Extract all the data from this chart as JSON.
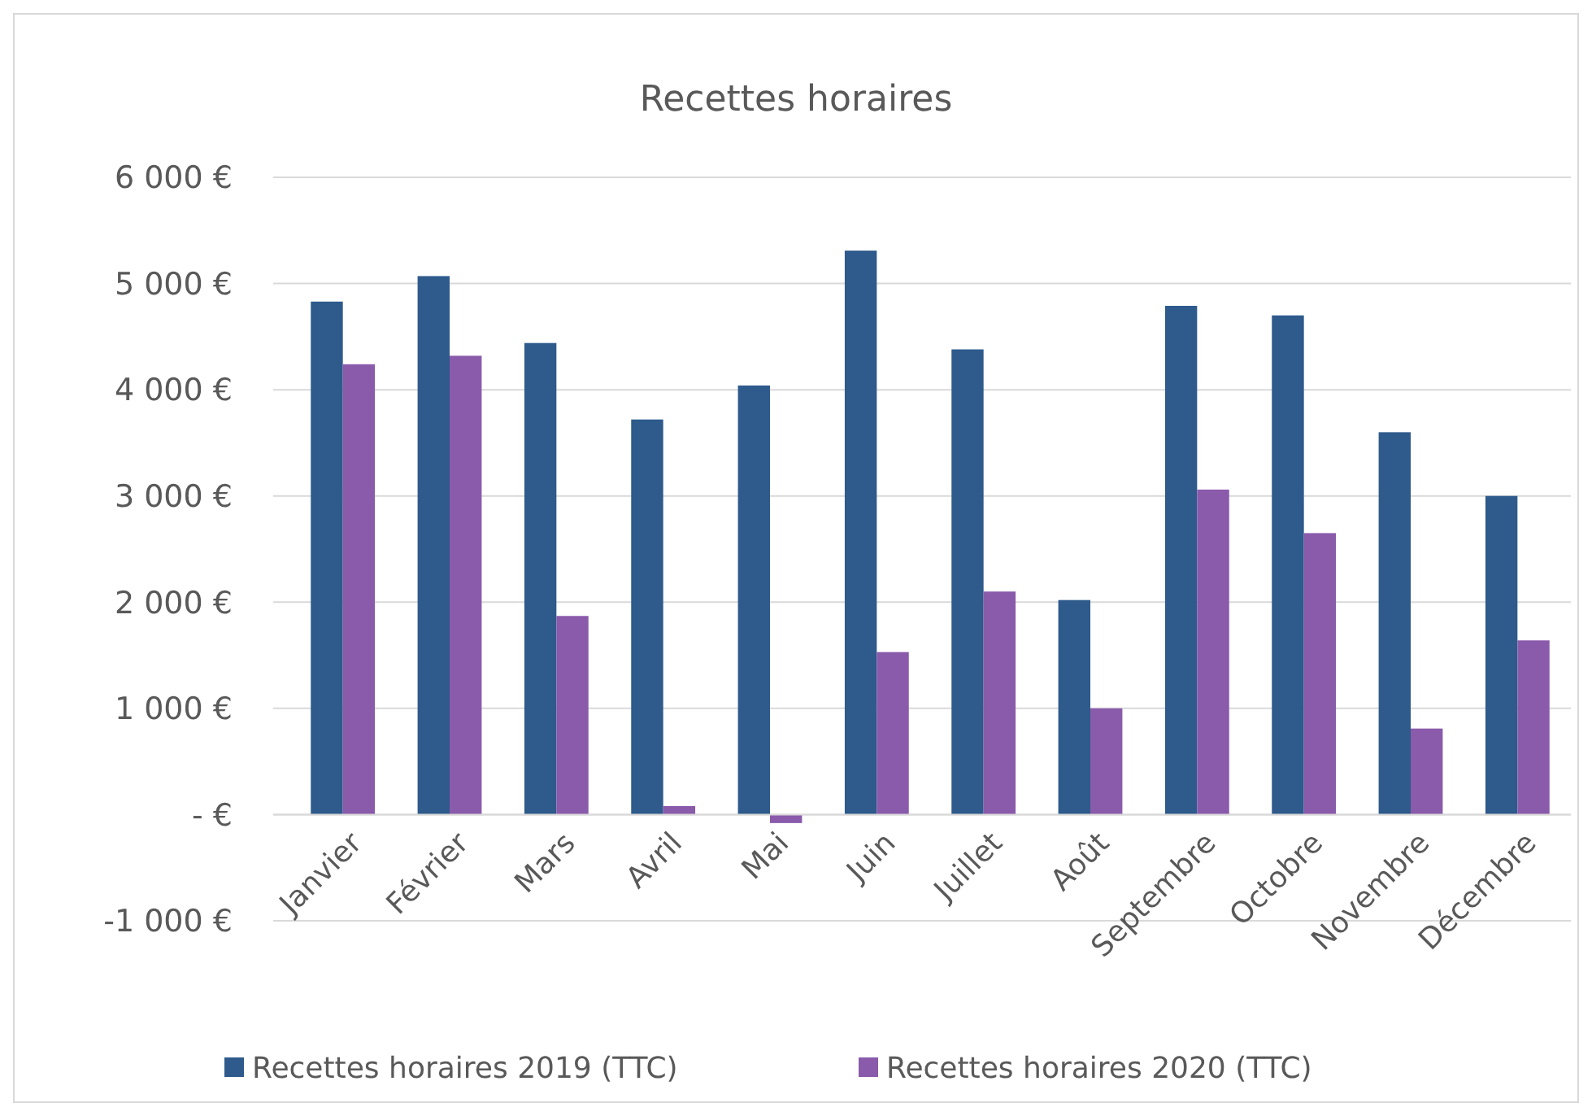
{
  "chart_data": {
    "type": "bar",
    "title": "Recettes horaires",
    "categories": [
      "Janvier",
      "Février",
      "Mars",
      "Avril",
      "Mai",
      "Juin",
      "Juillet",
      "Août",
      "Septembre",
      "Octobre",
      "Novembre",
      "Décembre"
    ],
    "series": [
      {
        "name": "Recettes horaires 2019 (TTC)",
        "color": "#2e5a8c",
        "values": [
          4830,
          5070,
          4440,
          3720,
          4040,
          5310,
          4380,
          2020,
          4790,
          4700,
          3600,
          3000
        ]
      },
      {
        "name": "Recettes horaires 2020 (TTC)",
        "color": "#8a5aab",
        "values": [
          4240,
          4320,
          1870,
          80,
          -80,
          1530,
          2100,
          1000,
          3060,
          2650,
          810,
          1640
        ]
      }
    ],
    "ylim": [
      -1000,
      6000
    ],
    "yticks": [
      {
        "value": -1000,
        "label": "-1 000 €"
      },
      {
        "value": 0,
        "label": "-   €"
      },
      {
        "value": 1000,
        "label": "1 000 €"
      },
      {
        "value": 2000,
        "label": "2 000 €"
      },
      {
        "value": 3000,
        "label": "3 000 €"
      },
      {
        "value": 4000,
        "label": "4 000 €"
      },
      {
        "value": 5000,
        "label": "5 000 €"
      },
      {
        "value": 6000,
        "label": "6 000 €"
      }
    ],
    "grid": "y",
    "legend": "bottom"
  }
}
